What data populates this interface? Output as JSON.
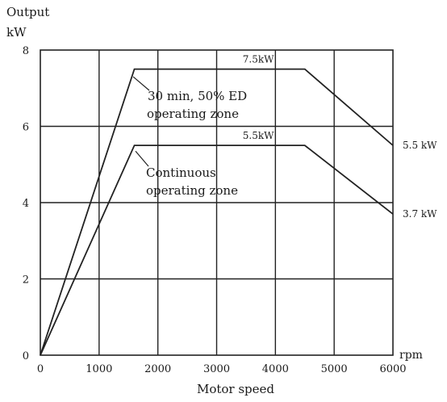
{
  "chart_data": {
    "type": "line",
    "ylabel": [
      "Output",
      "kW"
    ],
    "xlabel": "Motor speed",
    "xunit": "rpm",
    "xlim": [
      0,
      6000
    ],
    "ylim": [
      0,
      8
    ],
    "xticks": [
      0,
      1000,
      2000,
      3000,
      4000,
      5000,
      6000
    ],
    "yticks": [
      0,
      2,
      4,
      6,
      8
    ],
    "grid": true,
    "series": [
      {
        "name": "30 min, 50% ED operating zone",
        "x": [
          0,
          1600,
          4500,
          6000
        ],
        "y": [
          0,
          7.5,
          7.5,
          5.5
        ],
        "peak_label": "7.5kW",
        "end_label": "5.5 kW"
      },
      {
        "name": "Continuous operating zone",
        "x": [
          0,
          1600,
          4500,
          6000
        ],
        "y": [
          0,
          5.5,
          5.5,
          3.7
        ],
        "peak_label": "5.5kW",
        "end_label": "3.7 kW"
      }
    ],
    "annotations": [
      {
        "lines": [
          "30 min, 50% ED",
          "operating zone"
        ]
      },
      {
        "lines": [
          "Continuous",
          "operating zone"
        ]
      }
    ]
  }
}
